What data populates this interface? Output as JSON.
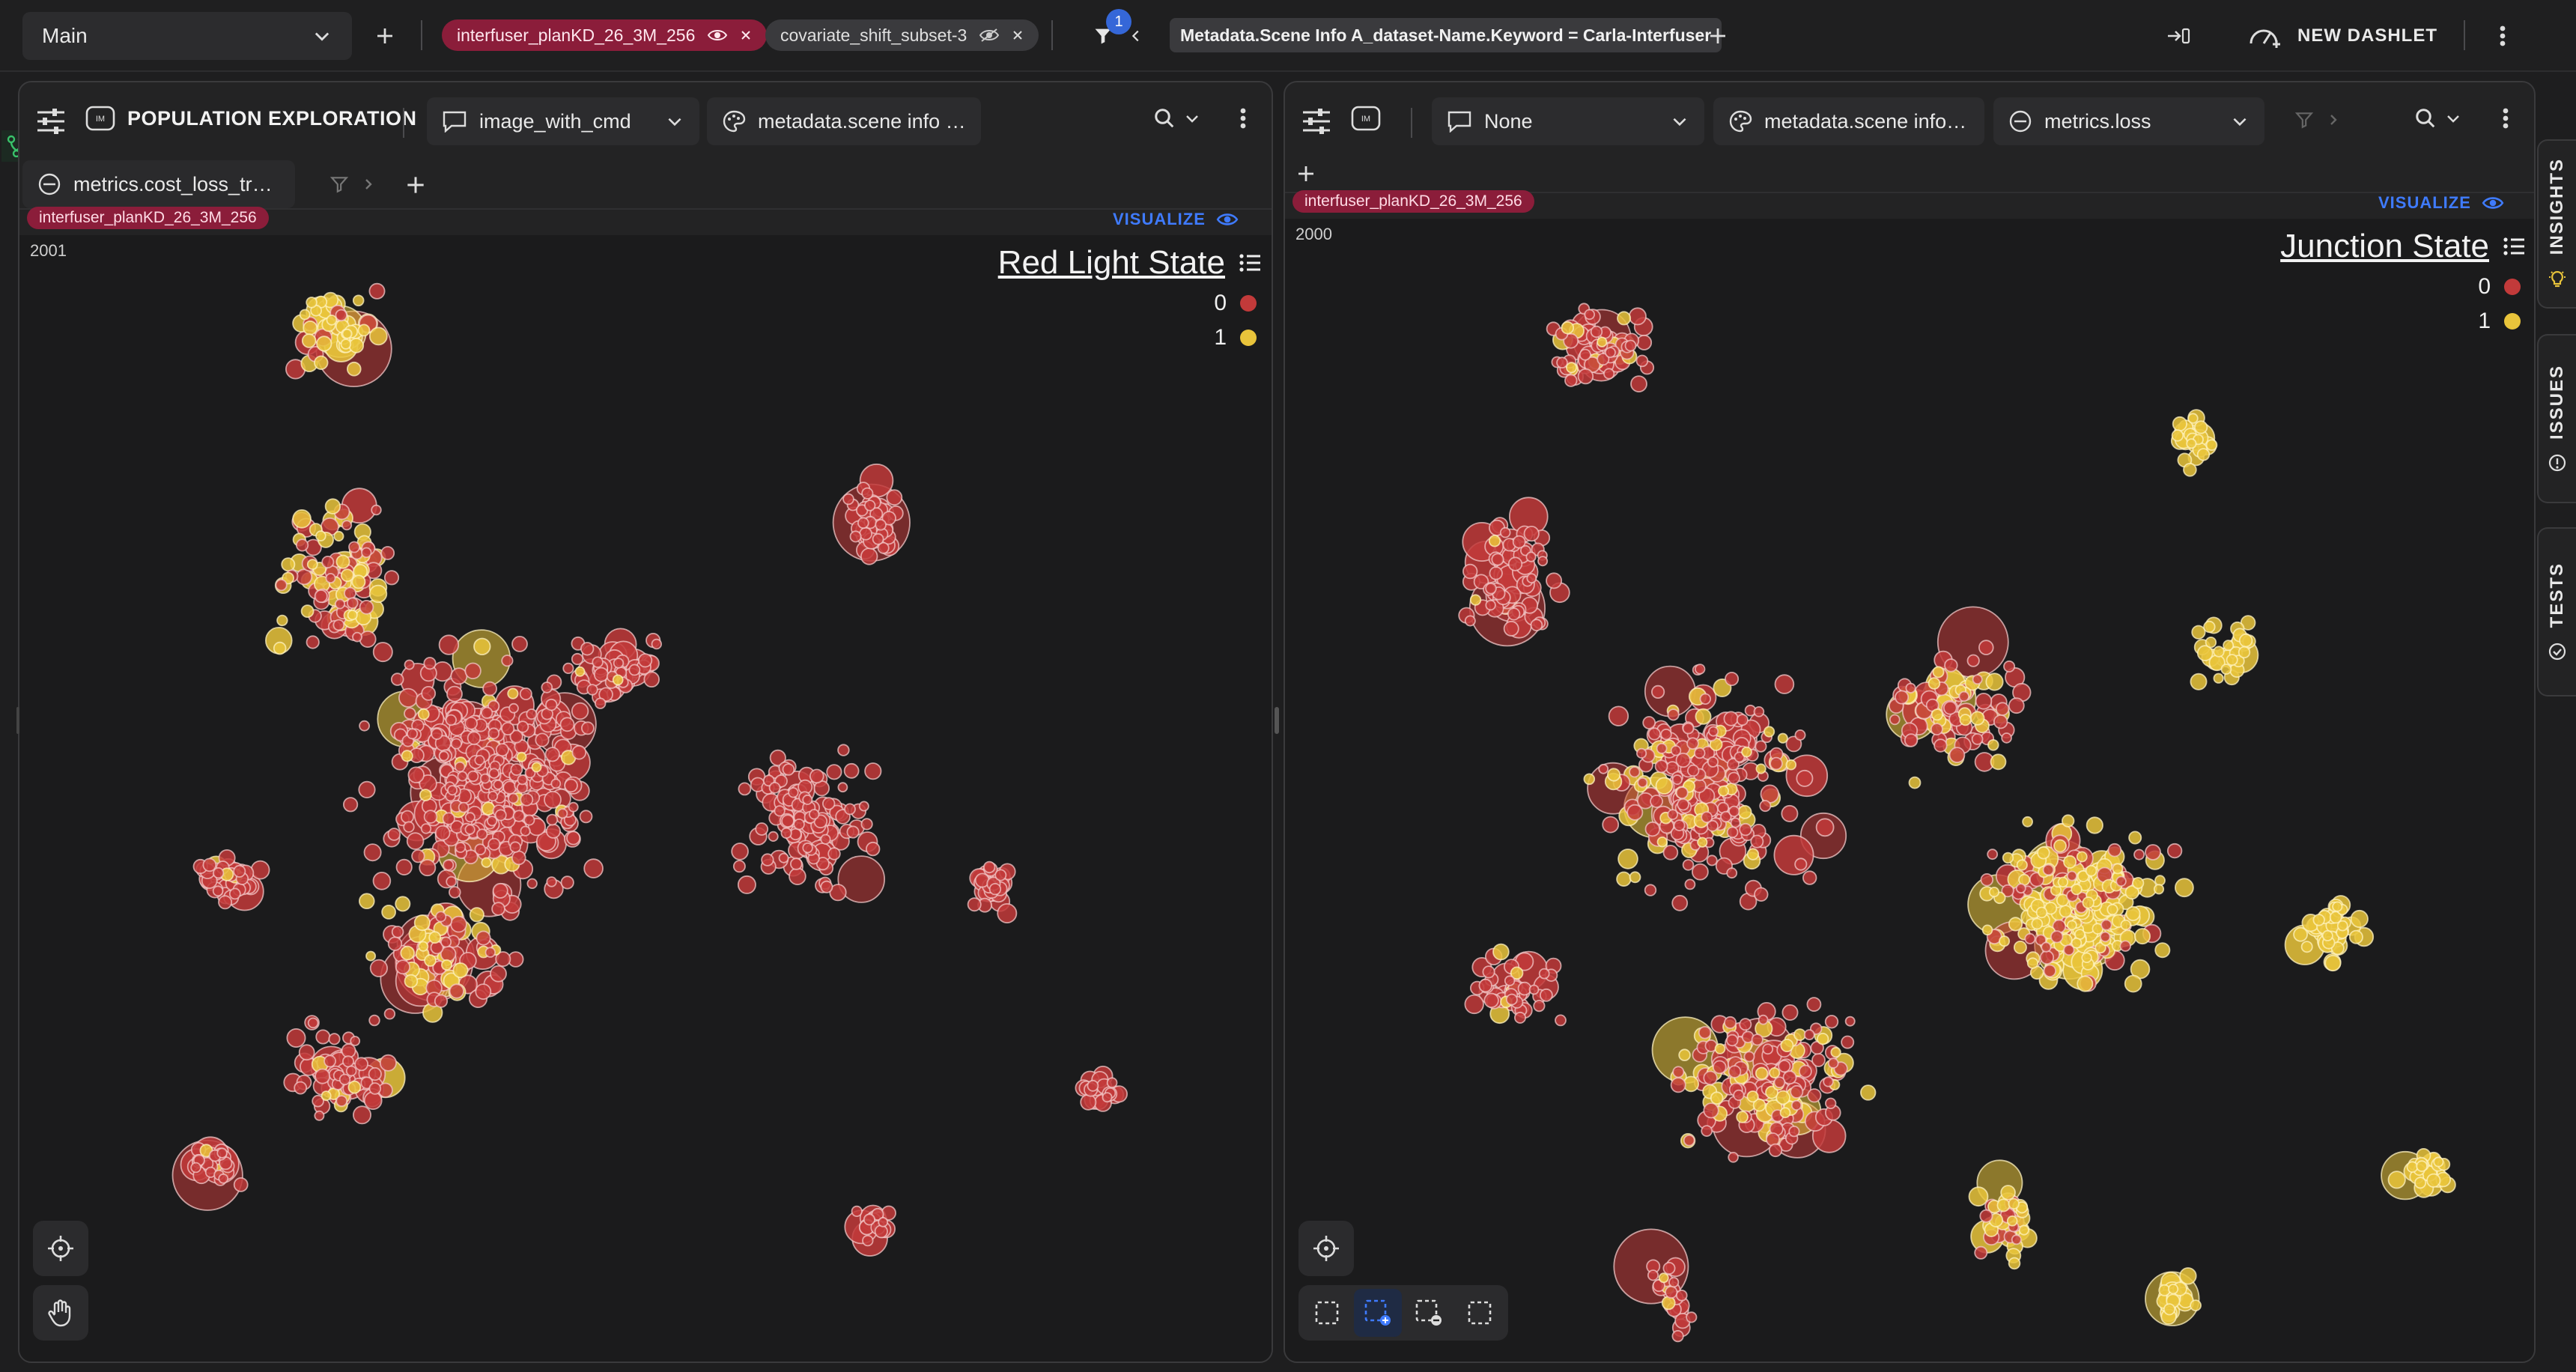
{
  "topbar": {
    "workspace": "Main",
    "chips": [
      {
        "label": "interfuser_planKD_26_3M_256",
        "style": "red"
      },
      {
        "label": "covariate_shift_subset-3",
        "style": "gray"
      }
    ],
    "filter_count": "1",
    "filter_text": "Metadata.Scene Info A_dataset-Name.Keyword = Carla-Interfuser",
    "new_dashlet": "NEW DASHLET"
  },
  "left_panel": {
    "title": "POPULATION EXPLORATION",
    "dropdown1": "image_with_cmd",
    "dropdown2": "metadata.scene info a…",
    "dropdown3": "metrics.cost_loss_traffi…",
    "dataset_tag": "interfuser_planKD_26_3M_256",
    "visualize": "VISUALIZE",
    "count": "2001",
    "legend_title": "Red Light State",
    "legend": [
      {
        "label": "0",
        "color": "#c23a3a"
      },
      {
        "label": "1",
        "color": "#e9c43b"
      }
    ]
  },
  "right_panel": {
    "dropdown1": "None",
    "dropdown2": "metadata.scene info a…",
    "dropdown3": "metrics.loss",
    "dataset_tag": "interfuser_planKD_26_3M_256",
    "visualize": "VISUALIZE",
    "count": "2000",
    "legend_title": "Junction State",
    "legend": [
      {
        "label": "0",
        "color": "#c23a3a"
      },
      {
        "label": "1",
        "color": "#e9c43b"
      }
    ]
  },
  "sidebar": {
    "tabs": [
      "INSIGHTS",
      "ISSUES",
      "TESTS"
    ]
  },
  "colors": {
    "red": "#c23a3a",
    "yellow": "#e9c43b",
    "accent": "#3f7bff",
    "tag": "#8b1d3a"
  },
  "icons": [
    "chevron-down-icon",
    "plus-icon",
    "eye-icon",
    "eye-off-icon",
    "close-icon",
    "filter-icon",
    "chevron-left-icon",
    "collapse-icon",
    "dashlet-icon",
    "kebab-icon",
    "sliders-icon",
    "image-icon",
    "message-icon",
    "palette-icon",
    "metric-icon",
    "search-icon",
    "crosshair-icon",
    "hand-icon",
    "select-box-icon",
    "lightbulb-icon",
    "warning-icon",
    "check-circle-icon",
    "branch-icon"
  ]
}
